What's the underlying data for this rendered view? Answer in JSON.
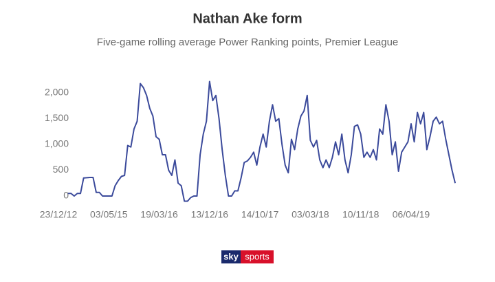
{
  "chart_data": {
    "type": "line",
    "title": "Nathan Ake form",
    "subtitle": "Five-game rolling average Power Ranking points, Premier League",
    "logo_text": [
      "sky",
      "sports"
    ],
    "color": "#3b4a9b",
    "grid": false,
    "ylim": [
      -200,
      2300
    ],
    "yticks": [
      0,
      500,
      {
        "value": 1000,
        "label": "1,000"
      },
      {
        "value": 1500,
        "label": "1,500"
      },
      {
        "value": 2000,
        "label": "2,000"
      }
    ],
    "categories": [
      "23/12/12",
      null,
      null,
      null,
      null,
      null,
      null,
      null,
      null,
      null,
      null,
      null,
      null,
      null,
      null,
      null,
      "03/05/15",
      null,
      null,
      null,
      null,
      null,
      null,
      null,
      null,
      null,
      null,
      null,
      null,
      null,
      null,
      null,
      "19/03/16",
      null,
      null,
      null,
      null,
      null,
      null,
      null,
      null,
      null,
      null,
      null,
      null,
      null,
      null,
      null,
      "13/12/16",
      null,
      null,
      null,
      null,
      null,
      null,
      null,
      null,
      null,
      null,
      null,
      null,
      null,
      null,
      null,
      "14/10/17",
      null,
      null,
      null,
      null,
      null,
      null,
      null,
      null,
      null,
      null,
      null,
      null,
      null,
      null,
      null,
      "03/03/18",
      null,
      null,
      null,
      null,
      null,
      null,
      null,
      null,
      null,
      null,
      null,
      null,
      null,
      null,
      null,
      "10/11/18",
      null,
      null,
      null,
      null,
      null,
      null,
      null,
      null,
      null,
      null,
      null,
      null,
      null,
      null,
      null,
      "06/04/19",
      null,
      null,
      null,
      null,
      null,
      null,
      null,
      null,
      null,
      null,
      null,
      null,
      null,
      null
    ],
    "values": [
      null,
      null,
      null,
      50,
      50,
      0,
      50,
      50,
      350,
      355,
      360,
      360,
      70,
      70,
      0,
      0,
      0,
      0,
      200,
      300,
      380,
      400,
      980,
      950,
      1300,
      1450,
      2180,
      2100,
      1950,
      1700,
      1550,
      1150,
      1100,
      800,
      800,
      500,
      400,
      700,
      250,
      200,
      -100,
      -100,
      -30,
      0,
      0,
      800,
      1200,
      1450,
      2220,
      1850,
      1950,
      1500,
      900,
      400,
      0,
      0,
      100,
      100,
      350,
      650,
      680,
      750,
      850,
      600,
      950,
      1200,
      950,
      1450,
      1770,
      1450,
      1500,
      1000,
      600,
      450,
      1100,
      900,
      1300,
      1550,
      1650,
      1950,
      1080,
      950,
      1080,
      700,
      550,
      700,
      550,
      750,
      1050,
      800,
      1200,
      700,
      450,
      800,
      1350,
      1380,
      1200,
      750,
      850,
      750,
      900,
      700,
      1300,
      1200,
      1770,
      1450,
      800,
      1050,
      480,
      850,
      950,
      1050,
      1400,
      1050,
      1620,
      1400,
      1620,
      900,
      1150,
      1450,
      1530,
      1400,
      1450,
      1100,
      800,
      500,
      250
    ]
  }
}
